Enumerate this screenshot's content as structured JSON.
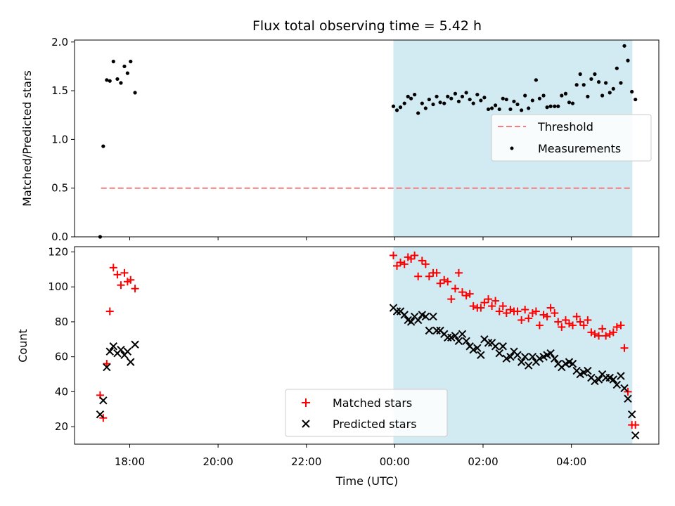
{
  "figure": {
    "title": "Flux total observing time = 5.42 h"
  },
  "colors": {
    "threshold": "#f08080",
    "measurements": "#000000",
    "matched": "#ff0000",
    "predicted": "#000000",
    "shade": "#add8e6"
  },
  "chart_data": [
    {
      "type": "scatter",
      "panel": "top",
      "xlabel": "",
      "ylabel": "Matched/Predicted stars",
      "ylim": [
        0,
        2.02
      ],
      "xlim_hours": [
        16.75,
        29.98
      ],
      "y_ticks": [
        "0.0",
        "0.5",
        "1.0",
        "1.5",
        "2.0"
      ],
      "grid": false,
      "legend": "center-right",
      "shaded_interval_hours": [
        23.97,
        29.38
      ],
      "threshold": {
        "name": "Threshold",
        "style": "dashed",
        "y": 0.5,
        "x_hours": [
          17.35,
          29.38
        ]
      },
      "series": [
        {
          "name": "Measurements",
          "marker": "dot",
          "x_hours": [
            17.33,
            17.4,
            17.48,
            17.55,
            17.63,
            17.72,
            17.8,
            17.88,
            17.95,
            18.02,
            18.12,
            23.97,
            24.05,
            24.13,
            24.22,
            24.3,
            24.37,
            24.45,
            24.53,
            24.62,
            24.7,
            24.78,
            24.87,
            24.95,
            25.03,
            25.12,
            25.2,
            25.28,
            25.37,
            25.45,
            25.53,
            25.62,
            25.7,
            25.78,
            25.87,
            25.95,
            26.03,
            26.12,
            26.2,
            26.28,
            26.37,
            26.45,
            26.53,
            26.62,
            26.7,
            26.78,
            26.87,
            26.95,
            27.03,
            27.12,
            27.2,
            27.28,
            27.37,
            27.45,
            27.53,
            27.62,
            27.7,
            27.78,
            27.87,
            27.95,
            28.03,
            28.12,
            28.2,
            28.28,
            28.37,
            28.45,
            28.53,
            28.62,
            28.7,
            28.78,
            28.87,
            28.95,
            29.03,
            29.12,
            29.2,
            29.28,
            29.37,
            29.45
          ],
          "y": [
            0.0,
            0.93,
            1.61,
            1.6,
            1.8,
            1.62,
            1.58,
            1.75,
            1.68,
            1.8,
            1.48,
            1.34,
            1.3,
            1.33,
            1.37,
            1.44,
            1.42,
            1.46,
            1.27,
            1.37,
            1.32,
            1.41,
            1.36,
            1.44,
            1.38,
            1.37,
            1.44,
            1.42,
            1.47,
            1.39,
            1.44,
            1.48,
            1.41,
            1.37,
            1.46,
            1.4,
            1.43,
            1.31,
            1.32,
            1.35,
            1.31,
            1.42,
            1.41,
            1.31,
            1.39,
            1.36,
            1.3,
            1.45,
            1.32,
            1.4,
            1.61,
            1.42,
            1.45,
            1.33,
            1.34,
            1.34,
            1.34,
            1.45,
            1.47,
            1.38,
            1.37,
            1.56,
            1.67,
            1.56,
            1.44,
            1.62,
            1.67,
            1.59,
            1.45,
            1.58,
            1.48,
            1.52,
            1.73,
            1.58,
            1.96,
            1.81,
            1.49,
            1.41
          ]
        }
      ]
    },
    {
      "type": "scatter",
      "panel": "bottom",
      "xlabel": "Time (UTC)",
      "ylabel": "Count",
      "ylim": [
        10,
        123
      ],
      "xlim_hours": [
        16.75,
        29.98
      ],
      "x_ticks": [
        {
          "hour": 18,
          "label": "18:00"
        },
        {
          "hour": 20,
          "label": "20:00"
        },
        {
          "hour": 22,
          "label": "22:00"
        },
        {
          "hour": 24,
          "label": "00:00"
        },
        {
          "hour": 26,
          "label": "02:00"
        },
        {
          "hour": 28,
          "label": "04:00"
        }
      ],
      "y_ticks": [
        "20",
        "40",
        "60",
        "80",
        "100",
        "120"
      ],
      "grid": false,
      "legend": "lower-center",
      "shaded_interval_hours": [
        23.97,
        29.38
      ],
      "series": [
        {
          "name": "Matched stars",
          "marker": "plus",
          "x_hours": [
            17.33,
            17.4,
            17.48,
            17.55,
            17.63,
            17.72,
            17.8,
            17.88,
            17.95,
            18.02,
            18.12,
            23.97,
            24.05,
            24.13,
            24.22,
            24.3,
            24.37,
            24.45,
            24.53,
            24.62,
            24.7,
            24.78,
            24.87,
            24.95,
            25.03,
            25.12,
            25.2,
            25.28,
            25.37,
            25.45,
            25.53,
            25.62,
            25.7,
            25.78,
            25.87,
            25.95,
            26.03,
            26.12,
            26.2,
            26.28,
            26.37,
            26.45,
            26.53,
            26.62,
            26.7,
            26.78,
            26.87,
            26.95,
            27.03,
            27.12,
            27.2,
            27.28,
            27.37,
            27.45,
            27.53,
            27.62,
            27.7,
            27.78,
            27.87,
            27.95,
            28.03,
            28.12,
            28.2,
            28.28,
            28.37,
            28.45,
            28.53,
            28.62,
            28.7,
            28.78,
            28.87,
            28.95,
            29.03,
            29.12,
            29.2,
            29.28,
            29.37,
            29.45
          ],
          "y": [
            38,
            25,
            56,
            86,
            111,
            107,
            101,
            108,
            103,
            104,
            99,
            118,
            112,
            114,
            113,
            117,
            116,
            118,
            106,
            115,
            113,
            106,
            108,
            108,
            102,
            104,
            103,
            93,
            99,
            108,
            97,
            95,
            96,
            89,
            88,
            88,
            91,
            93,
            89,
            92,
            86,
            89,
            85,
            87,
            86,
            86,
            81,
            87,
            82,
            85,
            86,
            78,
            84,
            83,
            88,
            85,
            80,
            77,
            81,
            79,
            78,
            83,
            80,
            78,
            81,
            74,
            73,
            72,
            76,
            72,
            73,
            74,
            77,
            78,
            65,
            40,
            21,
            21
          ]
        },
        {
          "name": "Predicted stars",
          "marker": "x",
          "x_hours": [
            17.33,
            17.4,
            17.48,
            17.55,
            17.63,
            17.72,
            17.8,
            17.88,
            17.95,
            18.02,
            18.12,
            23.97,
            24.05,
            24.13,
            24.22,
            24.3,
            24.37,
            24.45,
            24.53,
            24.62,
            24.7,
            24.78,
            24.87,
            24.95,
            25.03,
            25.12,
            25.2,
            25.28,
            25.37,
            25.45,
            25.53,
            25.62,
            25.7,
            25.78,
            25.87,
            25.95,
            26.03,
            26.12,
            26.2,
            26.28,
            26.37,
            26.45,
            26.53,
            26.62,
            26.7,
            26.78,
            26.87,
            26.95,
            27.03,
            27.12,
            27.2,
            27.28,
            27.37,
            27.45,
            27.53,
            27.62,
            27.7,
            27.78,
            27.87,
            27.95,
            28.03,
            28.12,
            28.2,
            28.28,
            28.37,
            28.45,
            28.53,
            28.62,
            28.7,
            28.78,
            28.87,
            28.95,
            29.03,
            29.12,
            29.2,
            29.28,
            29.37,
            29.45
          ],
          "y": [
            27,
            35,
            54,
            63,
            66,
            62,
            64,
            61,
            63,
            57,
            67,
            88,
            86,
            86,
            84,
            81,
            80,
            83,
            81,
            84,
            83,
            75,
            83,
            75,
            75,
            73,
            71,
            71,
            72,
            69,
            73,
            69,
            66,
            64,
            65,
            61,
            70,
            68,
            68,
            66,
            62,
            66,
            59,
            60,
            63,
            61,
            57,
            60,
            55,
            60,
            57,
            59,
            60,
            61,
            62,
            59,
            56,
            54,
            56,
            57,
            56,
            52,
            50,
            51,
            52,
            48,
            46,
            47,
            50,
            48,
            48,
            47,
            44,
            49,
            42,
            36,
            27,
            15
          ]
        }
      ]
    }
  ]
}
